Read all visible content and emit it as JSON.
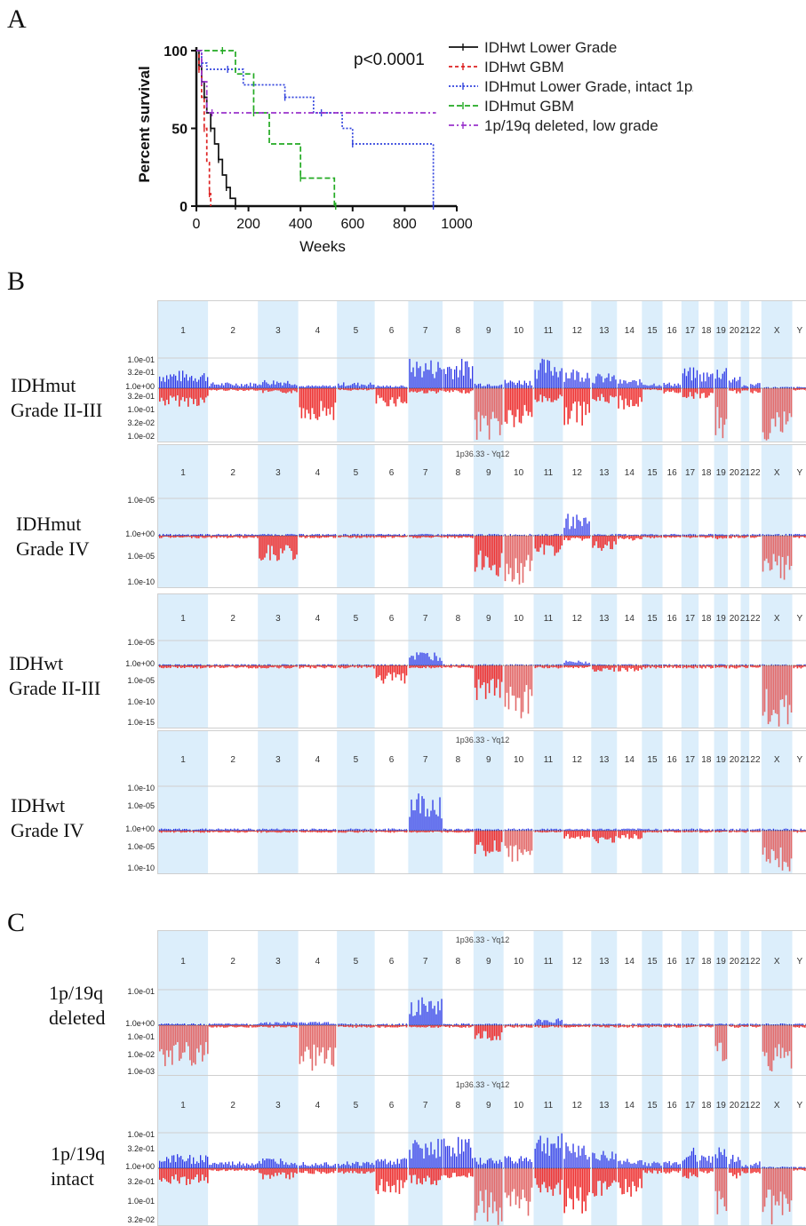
{
  "panels": {
    "a": "A",
    "b": "B",
    "c": "C"
  },
  "chart_data": [
    {
      "type": "line",
      "subtype": "kaplan-meier",
      "xlabel": "Weeks",
      "ylabel": "Percent survival",
      "xlim": [
        0,
        1000
      ],
      "ylim": [
        0,
        100
      ],
      "xticks": [
        "0",
        "200",
        "400",
        "600",
        "800",
        "1000"
      ],
      "yticks": [
        "0",
        "50",
        "100"
      ],
      "annotation": "p<0.0001",
      "legend_position": "top-right",
      "series": [
        {
          "name": "IDHwt Lower Grade",
          "color": "#111111",
          "dash": "solid",
          "x": [
            0,
            10,
            20,
            30,
            40,
            55,
            70,
            85,
            100,
            115,
            130,
            150
          ],
          "y": [
            100,
            90,
            80,
            70,
            60,
            50,
            40,
            30,
            20,
            12,
            5,
            0
          ]
        },
        {
          "name": "IDHwt GBM",
          "color": "#dd2222",
          "dash": "4,3",
          "x": [
            0,
            10,
            20,
            30,
            40,
            50,
            55
          ],
          "y": [
            100,
            88,
            70,
            50,
            28,
            8,
            0
          ]
        },
        {
          "name": "IDHmut Lower Grade, intact 1p/19q",
          "color": "#3344dd",
          "dash": "2,2",
          "x": [
            0,
            20,
            40,
            120,
            180,
            340,
            450,
            480,
            560,
            600,
            900,
            910
          ],
          "y": [
            100,
            92,
            88,
            88,
            78,
            70,
            60,
            60,
            50,
            40,
            40,
            0
          ]
        },
        {
          "name": "IDHmut GBM",
          "color": "#22aa22",
          "dash": "6,3",
          "x": [
            0,
            100,
            150,
            220,
            280,
            400,
            530,
            535
          ],
          "y": [
            100,
            100,
            85,
            60,
            40,
            18,
            0,
            0
          ]
        },
        {
          "name": "1p/19q deleted, low grade",
          "color": "#9933cc",
          "dash": "6,3,2,3",
          "x": [
            0,
            20,
            40,
            60,
            920
          ],
          "y": [
            100,
            80,
            60,
            60,
            60
          ]
        }
      ]
    },
    {
      "type": "area",
      "subtype": "copy-number-significance",
      "header": "1p36.33 - Yq12",
      "chromosomes": [
        "1",
        "2",
        "3",
        "4",
        "5",
        "6",
        "7",
        "8",
        "9",
        "10",
        "11",
        "12",
        "13",
        "14",
        "15",
        "16",
        "17",
        "18",
        "19",
        "20",
        "21",
        "22",
        "X",
        "Y"
      ],
      "rows": [
        {
          "label": [
            "IDHmut",
            "Grade II-III"
          ],
          "header_shown": false,
          "up_ticks": [
            "1.0e-01",
            "3.2e-01"
          ],
          "mid_tick": "1.0e+00",
          "down_ticks": [
            "3.2e-01",
            "1.0e-01",
            "3.2e-02",
            "1.0e-02"
          ]
        },
        {
          "label": [
            "IDHmut",
            "Grade IV"
          ],
          "header_shown": true,
          "up_ticks": [
            "1.0e-05"
          ],
          "mid_tick": "1.0e+00",
          "down_ticks": [
            "1.0e-05",
            "1.0e-10"
          ]
        },
        {
          "label": [
            "IDHwt",
            "Grade II-III"
          ],
          "header_shown": false,
          "up_ticks": [
            "1.0e-05"
          ],
          "mid_tick": "1.0e+00",
          "down_ticks": [
            "1.0e-05",
            "1.0e-10",
            "1.0e-15"
          ]
        },
        {
          "label": [
            "IDHwt",
            "Grade IV"
          ],
          "header_shown": true,
          "up_ticks": [
            "1.0e-10",
            "1.0e-05"
          ],
          "mid_tick": "1.0e+00",
          "down_ticks": [
            "1.0e-05",
            "1.0e-10"
          ]
        },
        {
          "label": [
            "1p/19q",
            "deleted"
          ],
          "header_shown": true,
          "up_ticks": [
            "1.0e-01"
          ],
          "mid_tick": "1.0e+00",
          "down_ticks": [
            "1.0e-01",
            "1.0e-02",
            "1.0e-03"
          ]
        },
        {
          "label": [
            "1p/19q",
            "intact"
          ],
          "header_shown": true,
          "up_ticks": [
            "1.0e-01",
            "3.2e-01"
          ],
          "mid_tick": "1.0e+00",
          "down_ticks": [
            "3.2e-01",
            "1.0e-01",
            "3.2e-02"
          ]
        }
      ]
    }
  ]
}
